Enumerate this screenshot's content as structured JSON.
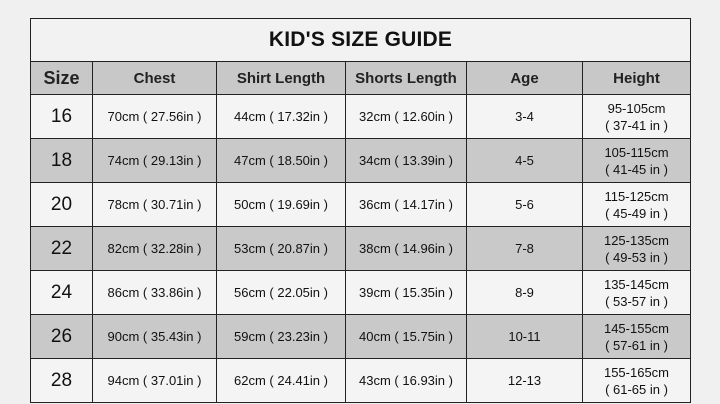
{
  "title": "KID'S SIZE GUIDE",
  "headers": [
    "Size",
    "Chest",
    "Shirt Length",
    "Shorts Length",
    "Age",
    "Height"
  ],
  "rows": [
    {
      "size": "16",
      "chest": "70cm ( 27.56in )",
      "shirt": "44cm ( 17.32in )",
      "shorts": "32cm ( 12.60in )",
      "age": "3-4",
      "height_cm": "95-105cm",
      "height_in": "( 37-41 in )"
    },
    {
      "size": "18",
      "chest": "74cm ( 29.13in )",
      "shirt": "47cm ( 18.50in )",
      "shorts": "34cm ( 13.39in )",
      "age": "4-5",
      "height_cm": "105-115cm",
      "height_in": "( 41-45 in )"
    },
    {
      "size": "20",
      "chest": "78cm ( 30.71in )",
      "shirt": "50cm ( 19.69in )",
      "shorts": "36cm ( 14.17in )",
      "age": "5-6",
      "height_cm": "115-125cm",
      "height_in": "( 45-49 in )"
    },
    {
      "size": "22",
      "chest": "82cm ( 32.28in )",
      "shirt": "53cm ( 20.87in )",
      "shorts": "38cm ( 14.96in )",
      "age": "7-8",
      "height_cm": "125-135cm",
      "height_in": "( 49-53 in )"
    },
    {
      "size": "24",
      "chest": "86cm ( 33.86in )",
      "shirt": "56cm ( 22.05in )",
      "shorts": "39cm ( 15.35in )",
      "age": "8-9",
      "height_cm": "135-145cm",
      "height_in": "( 53-57 in )"
    },
    {
      "size": "26",
      "chest": "90cm ( 35.43in )",
      "shirt": "59cm ( 23.23in )",
      "shorts": "40cm ( 15.75in )",
      "age": "10-11",
      "height_cm": "145-155cm",
      "height_in": "( 57-61 in )"
    },
    {
      "size": "28",
      "chest": "94cm ( 37.01in )",
      "shirt": "62cm ( 24.41in )",
      "shorts": "43cm ( 16.93in )",
      "age": "12-13",
      "height_cm": "155-165cm",
      "height_in": "( 61-65 in )"
    }
  ],
  "colors": {
    "header_bg": "#c8c8c8",
    "alt_row_bg": "#c9c9c9",
    "row_bg": "#f4f4f4",
    "border": "#222222"
  }
}
